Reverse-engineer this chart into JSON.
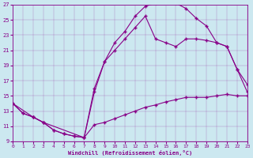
{
  "xlabel": "Windchill (Refroidissement éolien,°C)",
  "bg_color": "#cce8f0",
  "line_color": "#880088",
  "marker": "+",
  "xlim": [
    0,
    23
  ],
  "ylim": [
    9,
    27
  ],
  "yticks": [
    9,
    11,
    13,
    15,
    17,
    19,
    21,
    23,
    25,
    27
  ],
  "xticks": [
    0,
    1,
    2,
    3,
    4,
    5,
    6,
    7,
    8,
    9,
    10,
    11,
    12,
    13,
    14,
    15,
    16,
    17,
    18,
    19,
    20,
    21,
    22,
    23
  ],
  "series": [
    {
      "x": [
        0,
        1,
        2,
        3,
        4,
        5,
        6,
        7,
        8,
        9,
        10,
        11,
        12,
        13,
        14,
        15,
        16,
        17,
        18,
        19,
        20,
        21,
        22,
        23
      ],
      "y": [
        14,
        12.7,
        12.2,
        11.5,
        10.5,
        10.0,
        9.7,
        9.5,
        11.2,
        11.5,
        12.0,
        12.5,
        13.0,
        13.5,
        13.8,
        14.2,
        14.5,
        14.8,
        14.8,
        14.8,
        15.0,
        15.2,
        15.0,
        15.0
      ]
    },
    {
      "x": [
        0,
        1,
        2,
        3,
        4,
        5,
        6,
        7,
        8,
        9,
        10,
        11,
        12,
        13,
        14,
        15,
        16,
        17,
        18,
        19,
        20,
        21,
        22,
        23
      ],
      "y": [
        14,
        12.7,
        12.2,
        11.5,
        10.5,
        10.0,
        9.7,
        9.5,
        15.5,
        19.5,
        22.0,
        23.5,
        25.5,
        26.8,
        27.2,
        27.4,
        27.2,
        26.5,
        25.2,
        24.2,
        22.0,
        21.5,
        18.5,
        16.5
      ]
    },
    {
      "x": [
        0,
        2,
        3,
        7,
        8,
        9,
        10,
        11,
        12,
        13,
        14,
        15,
        16,
        17,
        18,
        19,
        20,
        21,
        22,
        23
      ],
      "y": [
        14,
        12.2,
        11.5,
        9.5,
        16.0,
        19.5,
        21.0,
        22.5,
        24.0,
        25.5,
        22.5,
        22.0,
        21.5,
        22.5,
        22.5,
        22.3,
        22.0,
        21.5,
        18.5,
        15.5
      ]
    }
  ]
}
